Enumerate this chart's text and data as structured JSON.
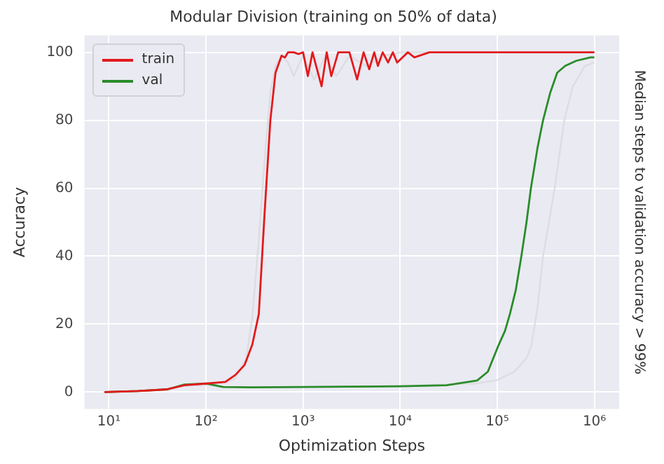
{
  "chart_data": {
    "type": "line",
    "title": "Modular Division (training on 50% of data)",
    "xlabel": "Optimization Steps",
    "ylabel": "Accuracy",
    "y2label": "Median steps to validation accuracy > 99%",
    "log": "x",
    "xlim": [
      5.6,
      1800000
    ],
    "ylim": [
      -5,
      105
    ],
    "xticks": [
      {
        "value": 10,
        "label": "10¹"
      },
      {
        "value": 100,
        "label": "10²"
      },
      {
        "value": 1000,
        "label": "10³"
      },
      {
        "value": 10000,
        "label": "10⁴"
      },
      {
        "value": 100000,
        "label": "10⁵"
      },
      {
        "value": 1000000,
        "label": "10⁶"
      }
    ],
    "yticks": [
      0,
      20,
      40,
      60,
      80,
      100
    ],
    "grid": true,
    "legend": "top left",
    "marker": "none",
    "line_style": "solid",
    "series": [
      {
        "color": "#dcdce2",
        "x": [
          10,
          30,
          60,
          100,
          160,
          200,
          260,
          300,
          350,
          400,
          460,
          520,
          600,
          700,
          800,
          1000,
          1300,
          1700,
          2200,
          3000,
          4500,
          7000,
          10000,
          30000,
          100000,
          1000000
        ],
        "values": [
          0,
          0.5,
          1.8,
          2.2,
          2.8,
          4,
          10,
          22,
          45,
          68,
          88,
          96,
          99,
          97,
          93,
          99,
          92,
          99,
          93,
          99,
          96,
          99,
          100,
          100,
          100,
          100
        ]
      },
      {
        "color": "#dcdce2",
        "x": [
          10,
          30,
          60,
          100,
          150,
          1000,
          10000,
          60000,
          100000,
          150000,
          200000,
          224000,
          260000,
          296000,
          350000,
          390000,
          490000,
          600000,
          800000,
          1000000
        ],
        "values": [
          0,
          0.5,
          1.8,
          2.2,
          1.5,
          1.5,
          1.8,
          2.5,
          3.5,
          6,
          10,
          13.5,
          25,
          40,
          52,
          60,
          80,
          90,
          96,
          97
        ]
      },
      {
        "name": "train",
        "color": "#e31a1c",
        "x": [
          9,
          20,
          40,
          60,
          100,
          130,
          158,
          200,
          250,
          300,
          350,
          400,
          460,
          520,
          600,
          650,
          700,
          800,
          900,
          1000,
          1120,
          1250,
          1550,
          1750,
          1950,
          2300,
          3000,
          3600,
          4200,
          4800,
          5400,
          5900,
          6600,
          7500,
          8400,
          9300,
          12000,
          14000,
          20000,
          50000,
          100000,
          300000,
          1000000
        ],
        "values": [
          0,
          0.3,
          0.8,
          2,
          2.5,
          2.8,
          3,
          5,
          8,
          14,
          23,
          52,
          80,
          94,
          99,
          98.5,
          100,
          100,
          99.5,
          100,
          93,
          100,
          90,
          100,
          93,
          100,
          100,
          92,
          100,
          95,
          100,
          96,
          100,
          97,
          100,
          97,
          100,
          98.5,
          100,
          100,
          100,
          100,
          100
        ]
      },
      {
        "name": "val",
        "color": "#2a8c2a",
        "x": [
          9,
          20,
          40,
          60,
          100,
          150,
          300,
          1000,
          3000,
          10000,
          30000,
          62000,
          80000,
          102000,
          120000,
          135000,
          155000,
          177000,
          200000,
          222000,
          260000,
          296000,
          350000,
          414000,
          500000,
          650000,
          910000,
          1000000
        ],
        "values": [
          0,
          0.3,
          0.8,
          2.2,
          2.5,
          1.5,
          1.4,
          1.5,
          1.6,
          1.7,
          2,
          3.4,
          6,
          13.5,
          18,
          23,
          30,
          40,
          50,
          60,
          72,
          80,
          88,
          94,
          96,
          97.5,
          98.5,
          98.5
        ]
      }
    ]
  }
}
